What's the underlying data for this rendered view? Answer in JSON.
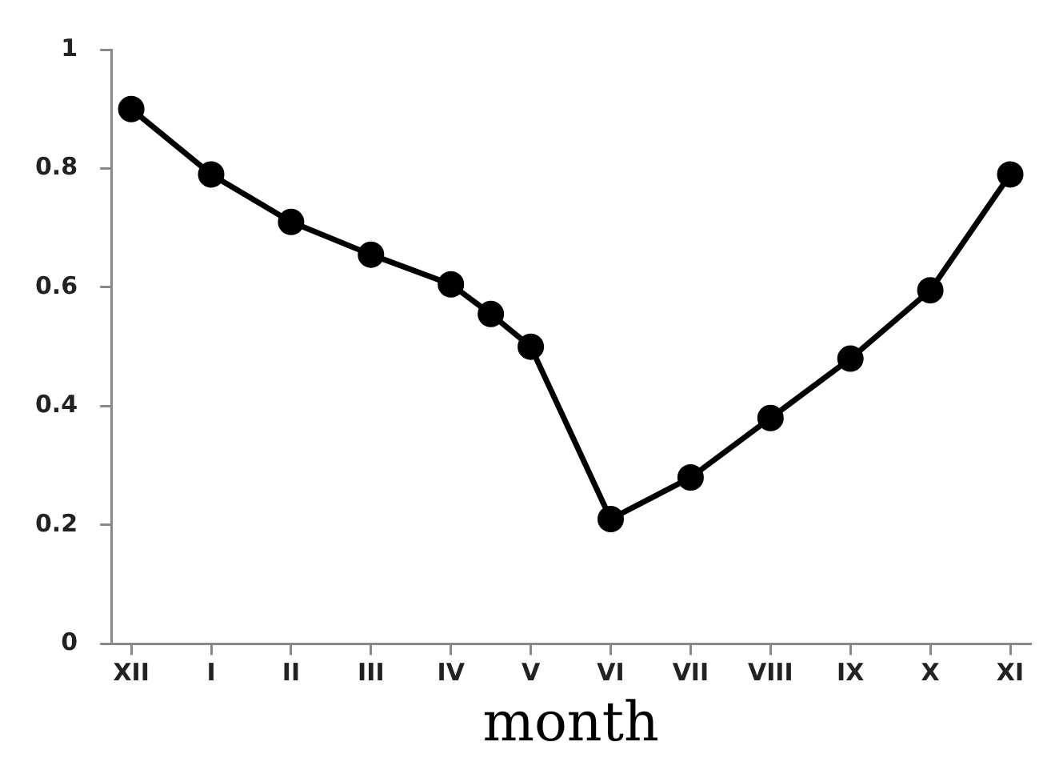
{
  "chart_data": {
    "type": "line",
    "xlabel": "month",
    "categories": [
      "XII",
      null,
      "I",
      null,
      "II",
      null,
      "III",
      null,
      "IV",
      null,
      "V",
      null,
      "VI",
      null,
      "VII",
      null,
      "VIII",
      null,
      "IX",
      null,
      "X",
      null,
      "XI"
    ],
    "series": [
      {
        "color": "#000000",
        "values": [
          0.9,
          null,
          0.79,
          null,
          0.71,
          null,
          0.655,
          null,
          0.605,
          0.555,
          0.5,
          null,
          0.21,
          null,
          0.28,
          null,
          0.38,
          null,
          0.48,
          null,
          0.595,
          null,
          0.79
        ]
      }
    ],
    "ylim": [
      0,
      1
    ],
    "yticks": [
      0,
      0.2,
      0.4,
      0.6,
      0.8,
      1
    ],
    "grid": false,
    "legend": false,
    "marker": "circle",
    "line_style": "solid"
  }
}
